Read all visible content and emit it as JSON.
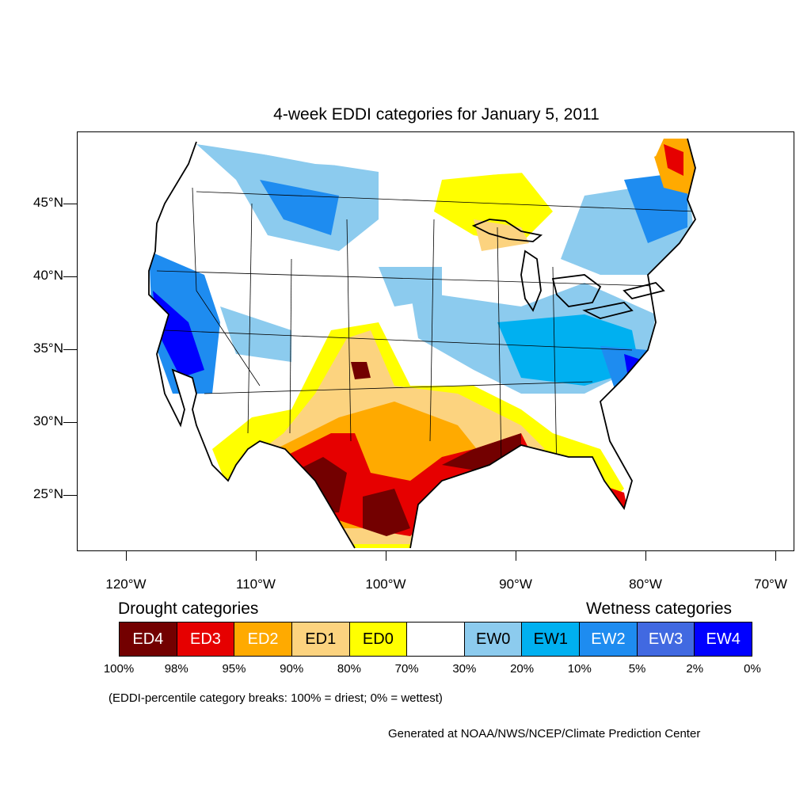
{
  "title": "4-week EDDI categories for January 5, 2011",
  "lat_labels": [
    "45°N",
    "40°N",
    "35°N",
    "30°N",
    "25°N"
  ],
  "lon_labels": [
    "120°W",
    "110°W",
    "100°W",
    "90°W",
    "80°W",
    "70°W"
  ],
  "legend": {
    "drought_heading": "Drought categories",
    "wetness_heading": "Wetness categories",
    "categories": [
      {
        "label": "ED4",
        "color": "#730000",
        "text_color": "#ffffff"
      },
      {
        "label": "ED3",
        "color": "#e60000",
        "text_color": "#ffffff"
      },
      {
        "label": "ED2",
        "color": "#ffaa00",
        "text_color": "#ffffff"
      },
      {
        "label": "ED1",
        "color": "#fcd37f",
        "text_color": "#000000"
      },
      {
        "label": "ED0",
        "color": "#ffff00",
        "text_color": "#000000"
      },
      {
        "label": "",
        "color": "#ffffff",
        "text_color": "#000000"
      },
      {
        "label": "EW0",
        "color": "#8ccbee",
        "text_color": "#000000"
      },
      {
        "label": "EW1",
        "color": "#00b0f0",
        "text_color": "#000000"
      },
      {
        "label": "EW2",
        "color": "#1e8cf0",
        "text_color": "#ffffff"
      },
      {
        "label": "EW3",
        "color": "#4169e1",
        "text_color": "#ffffff"
      },
      {
        "label": "EW4",
        "color": "#0000ff",
        "text_color": "#ffffff"
      }
    ],
    "percent_breaks": [
      "100%",
      "98%",
      "95%",
      "90%",
      "80%",
      "70%",
      "30%",
      "20%",
      "10%",
      "5%",
      "2%",
      "0%"
    ]
  },
  "breaks_note": "(EDDI-percentile category breaks: 100% = driest; 0% = wettest)",
  "credit": "Generated at NOAA/NWS/NCEP/Climate Prediction Center"
}
